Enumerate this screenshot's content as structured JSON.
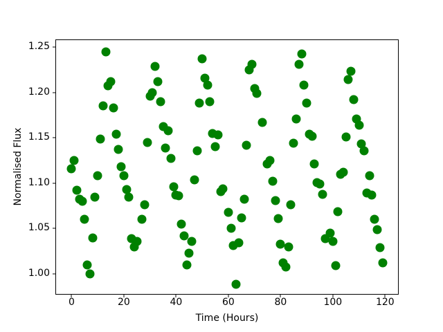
{
  "chart_data": {
    "type": "scatter",
    "title": "",
    "xlabel": "Time (Hours)",
    "ylabel": "Normalised Flux",
    "legend": null,
    "grid": false,
    "marker_color": "#008000",
    "marker_shape": "circle",
    "x_ticks": [
      0,
      20,
      40,
      60,
      80,
      100,
      120
    ],
    "y_ticks": [
      "1.00",
      "1.05",
      "1.10",
      "1.15",
      "1.20",
      "1.25"
    ],
    "xlim": [
      -5.95,
      124.95
    ],
    "ylim": [
      0.978,
      1.2576
    ],
    "points": [
      [
        0,
        1.116
      ],
      [
        1,
        1.125
      ],
      [
        2,
        1.092
      ],
      [
        3,
        1.082
      ],
      [
        4,
        1.08
      ],
      [
        5,
        1.06
      ],
      [
        6,
        1.01
      ],
      [
        7,
        1.0
      ],
      [
        8,
        1.04
      ],
      [
        9,
        1.085
      ],
      [
        10,
        1.108
      ],
      [
        11,
        1.149
      ],
      [
        12,
        1.185
      ],
      [
        13,
        1.245
      ],
      [
        14,
        1.207
      ],
      [
        15,
        1.212
      ],
      [
        16,
        1.183
      ],
      [
        17,
        1.154
      ],
      [
        18,
        1.137
      ],
      [
        19,
        1.118
      ],
      [
        20,
        1.108
      ],
      [
        21,
        1.093
      ],
      [
        22,
        1.085
      ],
      [
        23,
        1.039
      ],
      [
        24,
        1.03
      ],
      [
        25,
        1.036
      ],
      [
        27,
        1.06
      ],
      [
        28,
        1.076
      ],
      [
        29,
        1.145
      ],
      [
        30,
        1.196
      ],
      [
        31,
        1.2
      ],
      [
        32,
        1.229
      ],
      [
        33,
        1.212
      ],
      [
        34,
        1.19
      ],
      [
        35,
        1.162
      ],
      [
        36,
        1.139
      ],
      [
        37,
        1.158
      ],
      [
        38,
        1.127
      ],
      [
        39,
        1.096
      ],
      [
        40,
        1.087
      ],
      [
        41,
        1.086
      ],
      [
        42,
        1.055
      ],
      [
        43,
        1.042
      ],
      [
        44,
        1.01
      ],
      [
        45,
        1.023
      ],
      [
        46,
        1.036
      ],
      [
        47,
        1.104
      ],
      [
        48,
        1.136
      ],
      [
        49,
        1.188
      ],
      [
        50,
        1.237
      ],
      [
        51,
        1.216
      ],
      [
        52,
        1.208
      ],
      [
        53,
        1.19
      ],
      [
        54,
        1.155
      ],
      [
        55,
        1.14
      ],
      [
        56,
        1.153
      ],
      [
        57,
        1.091
      ],
      [
        58,
        1.094
      ],
      [
        60,
        1.068
      ],
      [
        61,
        1.05
      ],
      [
        62,
        1.031
      ],
      [
        63,
        0.989
      ],
      [
        64,
        1.034
      ],
      [
        65,
        1.062
      ],
      [
        66,
        1.082
      ],
      [
        67,
        1.142
      ],
      [
        68,
        1.225
      ],
      [
        69,
        1.231
      ],
      [
        70,
        1.204
      ],
      [
        71,
        1.199
      ],
      [
        73,
        1.167
      ],
      [
        75,
        1.121
      ],
      [
        76,
        1.125
      ],
      [
        77,
        1.102
      ],
      [
        78,
        1.081
      ],
      [
        79,
        1.061
      ],
      [
        80,
        1.033
      ],
      [
        81,
        1.012
      ],
      [
        82,
        1.008
      ],
      [
        83,
        1.03
      ],
      [
        84,
        1.076
      ],
      [
        85,
        1.144
      ],
      [
        86,
        1.171
      ],
      [
        87,
        1.231
      ],
      [
        88,
        1.242
      ],
      [
        89,
        1.208
      ],
      [
        90,
        1.188
      ],
      [
        91,
        1.154
      ],
      [
        92,
        1.152
      ],
      [
        93,
        1.121
      ],
      [
        94,
        1.101
      ],
      [
        95,
        1.099
      ],
      [
        96,
        1.088
      ],
      [
        97,
        1.039
      ],
      [
        99,
        1.045
      ],
      [
        100,
        1.036
      ],
      [
        101,
        1.009
      ],
      [
        102,
        1.069
      ],
      [
        103,
        1.11
      ],
      [
        104,
        1.112
      ],
      [
        105,
        1.151
      ],
      [
        106,
        1.214
      ],
      [
        107,
        1.223
      ],
      [
        108,
        1.192
      ],
      [
        109,
        1.171
      ],
      [
        110,
        1.164
      ],
      [
        111,
        1.143
      ],
      [
        112,
        1.136
      ],
      [
        113,
        1.089
      ],
      [
        114,
        1.108
      ],
      [
        115,
        1.087
      ],
      [
        116,
        1.06
      ],
      [
        117,
        1.049
      ],
      [
        118,
        1.029
      ],
      [
        119,
        1.012
      ]
    ]
  }
}
